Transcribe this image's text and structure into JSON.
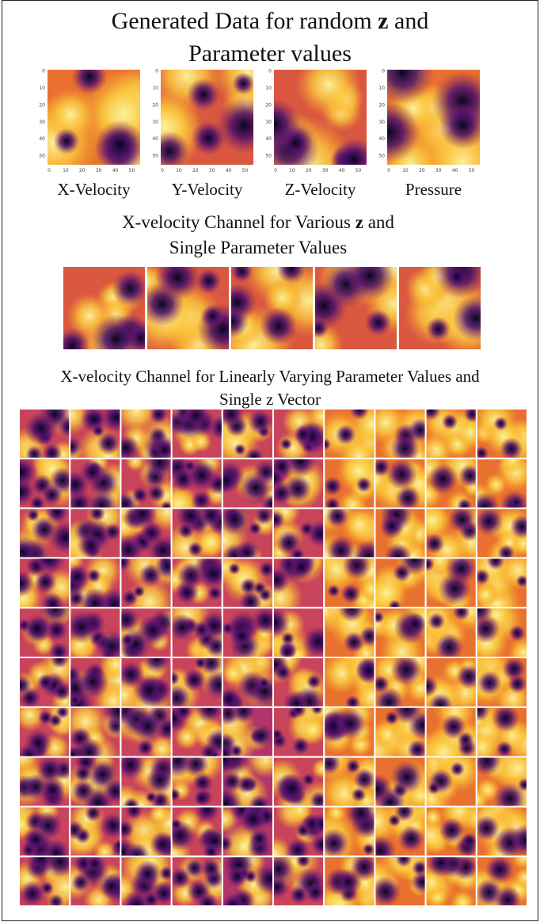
{
  "section1": {
    "title": [
      "Generated Data for random ",
      "z",
      " and"
    ],
    "title_line2": "Parameter values",
    "panels": [
      "X-Velocity",
      "Y-Velocity",
      "Z-Velocity",
      "Pressure"
    ],
    "yticks": [
      0,
      10,
      20,
      30,
      40,
      50
    ],
    "xticks": [
      0,
      10,
      20,
      30,
      40,
      50
    ]
  },
  "section2": {
    "title": [
      "X-velocity Channel for Various ",
      "z",
      " and"
    ],
    "title_line2": "Single Parameter Values"
  },
  "section3": {
    "title": "X-velocity Channel for Linearly Varying Parameter Values and",
    "title_line2": "Single z Vector"
  }
}
